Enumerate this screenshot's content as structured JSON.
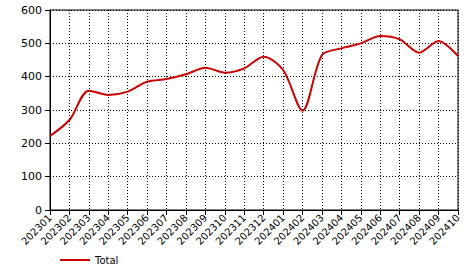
{
  "chart_data": {
    "type": "line",
    "categories": [
      "202301",
      "202302",
      "202303",
      "202304",
      "202305",
      "202306",
      "202307",
      "202308",
      "202309",
      "202310",
      "202311",
      "202312",
      "202401",
      "202402",
      "202403",
      "202404",
      "202405",
      "202406",
      "202407",
      "202408",
      "202409",
      "202410"
    ],
    "series": [
      {
        "name": "Total",
        "color": "#cc0000",
        "values": [
          222,
          270,
          358,
          345,
          355,
          385,
          393,
          407,
          427,
          412,
          425,
          460,
          420,
          298,
          465,
          485,
          500,
          522,
          512,
          472,
          507,
          462
        ]
      }
    ],
    "ylim": [
      0,
      600
    ],
    "yticks": [
      0,
      100,
      200,
      300,
      400,
      500,
      600
    ],
    "grid": true,
    "legend": "bottom-left",
    "marker": "none",
    "line_style": "solid"
  }
}
